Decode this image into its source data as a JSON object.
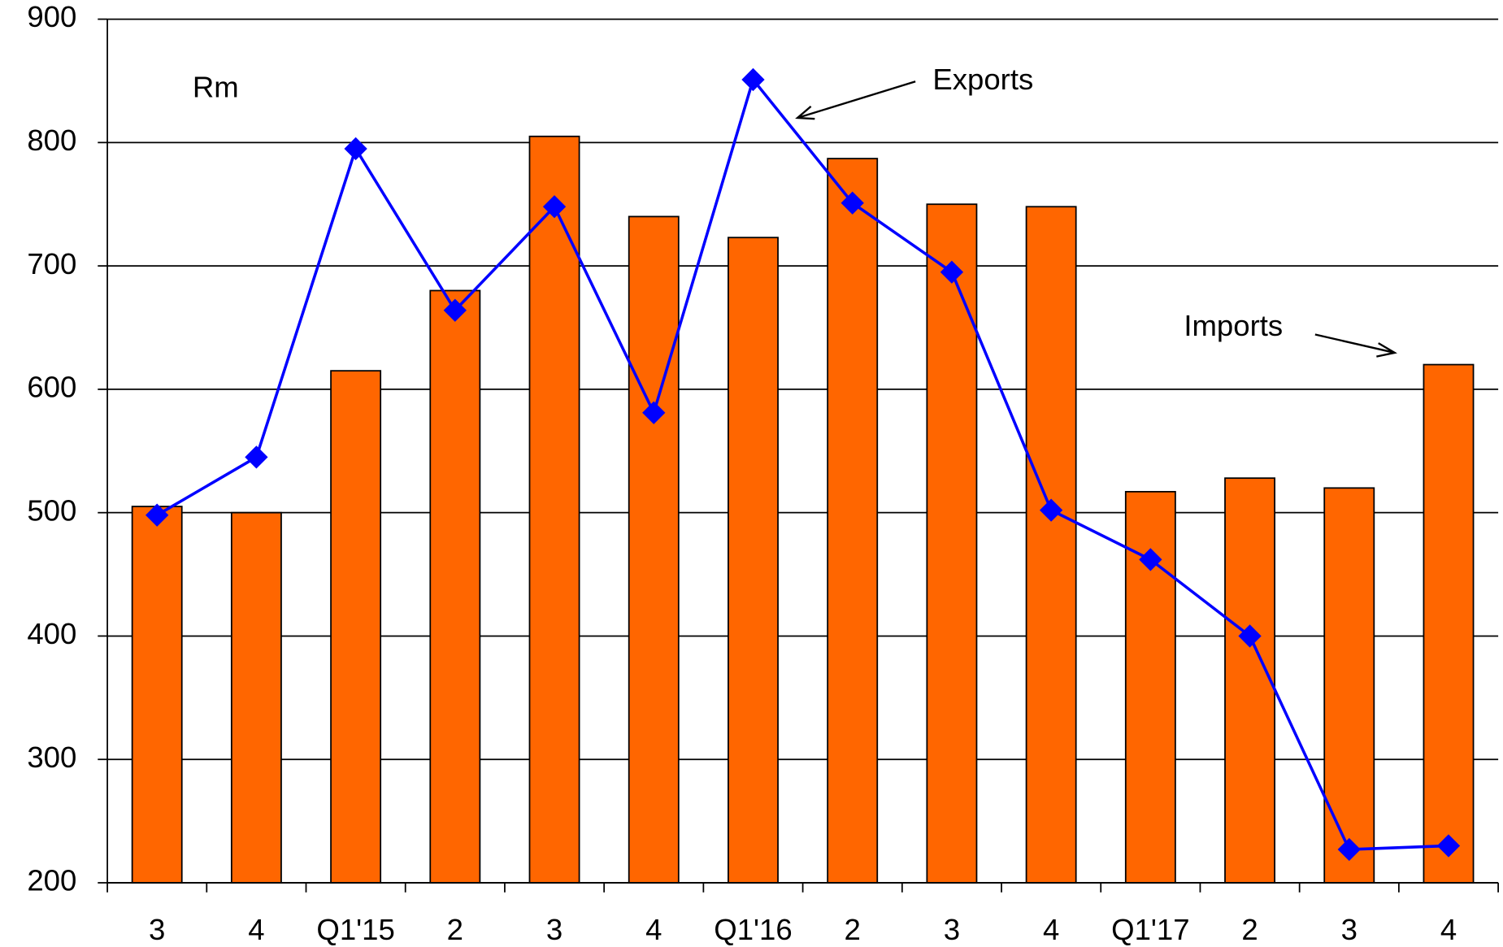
{
  "chart_data": {
    "type": "bar_line",
    "y_label": "Rm",
    "categories": [
      "3",
      "4",
      "Q1'15",
      "2",
      "3",
      "4",
      "Q1'16",
      "2",
      "3",
      "4",
      "Q1'17",
      "2",
      "3",
      "4"
    ],
    "series": [
      {
        "name": "Imports",
        "type": "bar",
        "color": "#ff6600",
        "values": [
          505,
          500,
          615,
          680,
          805,
          740,
          723,
          787,
          750,
          748,
          517,
          528,
          520,
          620
        ]
      },
      {
        "name": "Exports",
        "type": "line",
        "color": "#0000ff",
        "values": [
          498,
          545,
          795,
          664,
          748,
          581,
          851,
          751,
          695,
          502,
          462,
          400,
          227,
          230
        ]
      }
    ],
    "ylim": [
      200,
      900
    ],
    "yticks": [
      200,
      300,
      400,
      500,
      600,
      700,
      800,
      900
    ],
    "grid": true
  }
}
